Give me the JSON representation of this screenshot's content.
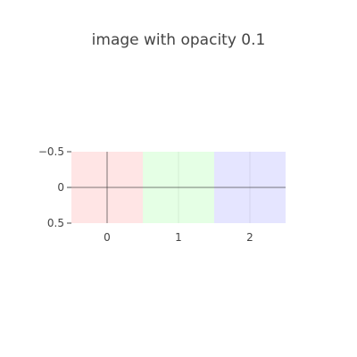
{
  "chart_data": {
    "type": "heatmap",
    "title": "image with opacity 0.1",
    "xlabel": "",
    "ylabel": "",
    "x_tick_labels": [
      "0",
      "1",
      "2"
    ],
    "y_tick_labels": [
      "−0.5",
      "0",
      "0.5"
    ],
    "xlim": [
      -0.5,
      2.5
    ],
    "ylim": [
      -0.5,
      0.5
    ],
    "y_reversed": true,
    "grid": true,
    "opacity": 0.1,
    "pixels": [
      {
        "x": 0,
        "y": 0,
        "color": "#ff0000"
      },
      {
        "x": 1,
        "y": 0,
        "color": "#00ff00"
      },
      {
        "x": 2,
        "y": 0,
        "color": "#0000ff"
      }
    ]
  }
}
